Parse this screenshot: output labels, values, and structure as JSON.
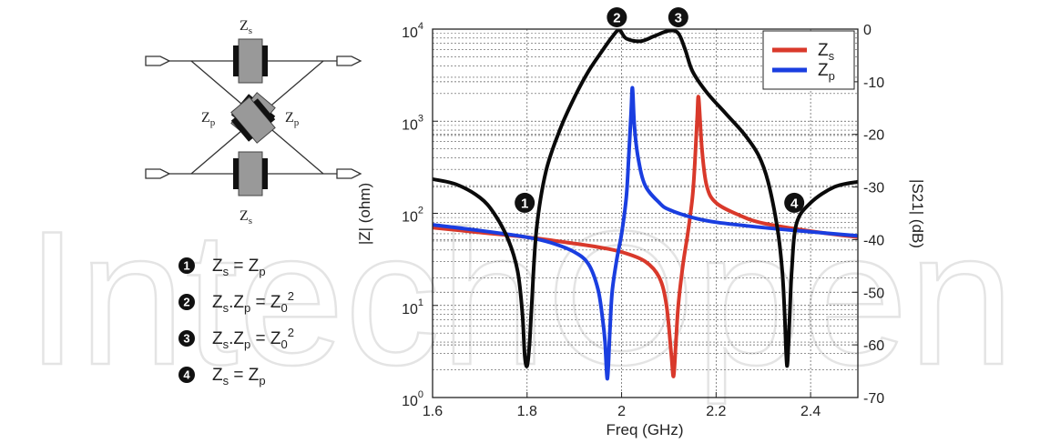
{
  "circuit": {
    "zs_top": {
      "main": "Z",
      "sub": "s"
    },
    "zs_bottom": {
      "main": "Z",
      "sub": "s"
    },
    "zp_left": {
      "main": "Z",
      "sub": "p"
    },
    "zp_right": {
      "main": "Z",
      "sub": "p"
    }
  },
  "conditions": [
    {
      "marker": "1",
      "text": [
        {
          "t": "Z"
        },
        {
          "t": "s",
          "sub": true
        },
        {
          "t": " = Z"
        },
        {
          "t": "p",
          "sub": true
        }
      ]
    },
    {
      "marker": "2",
      "text": [
        {
          "t": "Z"
        },
        {
          "t": "s",
          "sub": true
        },
        {
          "t": ".Z"
        },
        {
          "t": "p",
          "sub": true
        },
        {
          "t": " = Z"
        },
        {
          "t": "0",
          "sub": true
        },
        {
          "t": "2",
          "sup": true
        }
      ]
    },
    {
      "marker": "3",
      "text": [
        {
          "t": "Z"
        },
        {
          "t": "s",
          "sub": true
        },
        {
          "t": ".Z"
        },
        {
          "t": "p",
          "sub": true
        },
        {
          "t": " = Z"
        },
        {
          "t": "0",
          "sub": true
        },
        {
          "t": "2",
          "sup": true
        }
      ]
    },
    {
      "marker": "4",
      "text": [
        {
          "t": "Z"
        },
        {
          "t": "s",
          "sub": true
        },
        {
          "t": " = Z"
        },
        {
          "t": "p",
          "sub": true
        }
      ]
    }
  ],
  "watermark": "IntechOpen",
  "colors": {
    "zs": "#d9392b",
    "zp": "#1a3ee0",
    "s21": "#0a0a0a",
    "grid": "#555555"
  },
  "chart_data": {
    "type": "line",
    "xlabel": "Freq (GHz)",
    "ylabel_left": "|Z| (ohm)",
    "ylabel_right": "|S21| (dB)",
    "xlim": [
      1.6,
      2.5
    ],
    "xticks": [
      "1.6",
      "1.8",
      "2",
      "2.2",
      "2.4"
    ],
    "y_left_scale": "log",
    "y_left_lim": [
      1,
      10000
    ],
    "y_left_ticks": [
      {
        "base": "10",
        "exp": "0"
      },
      {
        "base": "10",
        "exp": "1"
      },
      {
        "base": "10",
        "exp": "2"
      },
      {
        "base": "10",
        "exp": "3"
      },
      {
        "base": "10",
        "exp": "4"
      }
    ],
    "y_right_lim": [
      -70,
      0
    ],
    "y_right_ticks": [
      "0",
      "-10",
      "-20",
      "-30",
      "-40",
      "-50",
      "-60",
      "-70"
    ],
    "grid": true,
    "legend_position": "top-right",
    "legend": [
      {
        "label": "Z",
        "sub": "s",
        "color": "#d9392b"
      },
      {
        "label": "Z",
        "sub": "p",
        "color": "#1a3ee0"
      }
    ],
    "markers": [
      {
        "label": "1",
        "x": 1.795,
        "y_db": -30
      },
      {
        "label": "2",
        "x": 1.99,
        "y_db": 0
      },
      {
        "label": "3",
        "x": 2.12,
        "y_db": 0
      },
      {
        "label": "4",
        "x": 2.35,
        "y_db": -30
      }
    ],
    "series": [
      {
        "name": "Zs",
        "axis": "left",
        "color": "#d9392b",
        "x": [
          1.6,
          1.7,
          1.8,
          1.9,
          1.95,
          2.0,
          2.05,
          2.08,
          2.095,
          2.105,
          2.11,
          2.115,
          2.12,
          2.13,
          2.14,
          2.15,
          2.155,
          2.16,
          2.163,
          2.17,
          2.18,
          2.2,
          2.25,
          2.3,
          2.4,
          2.5
        ],
        "y": [
          70,
          62,
          55,
          47,
          43,
          38,
          30,
          20,
          10,
          3,
          1.7,
          4,
          10,
          28,
          60,
          150,
          350,
          1100,
          1800,
          500,
          200,
          130,
          95,
          78,
          64,
          55
        ]
      },
      {
        "name": "Zp",
        "axis": "left",
        "color": "#1a3ee0",
        "x": [
          1.6,
          1.7,
          1.8,
          1.85,
          1.9,
          1.93,
          1.95,
          1.96,
          1.965,
          1.97,
          1.975,
          1.98,
          1.99,
          2.0,
          2.01,
          2.015,
          2.02,
          2.023,
          2.027,
          2.035,
          2.05,
          2.08,
          2.1,
          2.15,
          2.2,
          2.3,
          2.4,
          2.5
        ],
        "y": [
          75,
          65,
          55,
          48,
          38,
          28,
          15,
          7,
          4,
          1.6,
          5,
          14,
          32,
          60,
          150,
          400,
          1200,
          2300,
          900,
          400,
          200,
          130,
          110,
          90,
          80,
          70,
          63,
          57
        ]
      },
      {
        "name": "S21",
        "axis": "right",
        "color": "#0a0a0a",
        "x": [
          1.6,
          1.65,
          1.7,
          1.73,
          1.76,
          1.78,
          1.79,
          1.795,
          1.8,
          1.805,
          1.81,
          1.82,
          1.84,
          1.87,
          1.9,
          1.93,
          1.96,
          1.98,
          1.995,
          2.01,
          2.04,
          2.07,
          2.1,
          2.12,
          2.135,
          2.15,
          2.18,
          2.22,
          2.26,
          2.29,
          2.31,
          2.33,
          2.34,
          2.345,
          2.35,
          2.355,
          2.36,
          2.37,
          2.4,
          2.45,
          2.5
        ],
        "y": [
          -28.5,
          -29.5,
          -32,
          -35,
          -40,
          -46,
          -54,
          -62,
          -64,
          -60,
          -52,
          -38,
          -27,
          -19,
          -13,
          -8,
          -4,
          -1.5,
          -0.2,
          -1.8,
          -2.3,
          -1.3,
          -0.3,
          -0.8,
          -4,
          -8,
          -12,
          -16,
          -20,
          -24,
          -29,
          -38,
          -46,
          -54,
          -64,
          -56,
          -46,
          -37,
          -33,
          -30,
          -29
        ]
      }
    ]
  }
}
